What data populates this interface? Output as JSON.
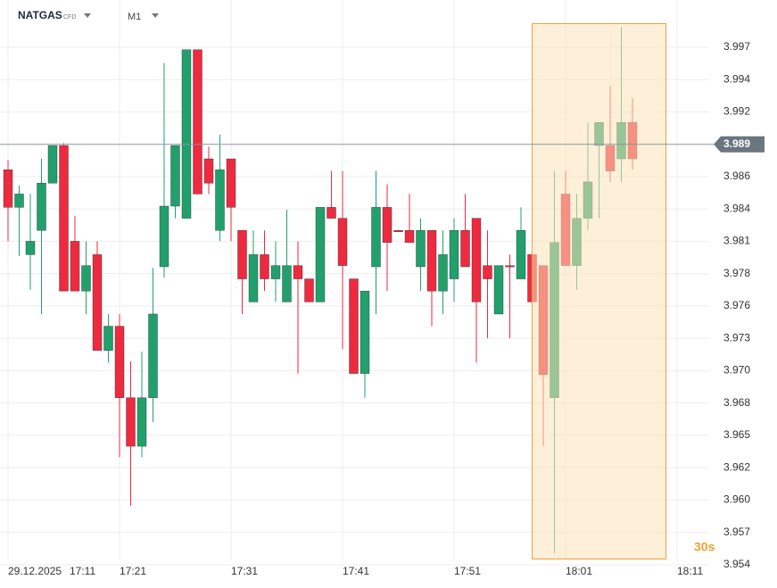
{
  "header": {
    "symbol": "NATGAS",
    "instrument_type": "CFD",
    "timeframe": "M1"
  },
  "chart_data": {
    "type": "candlestick",
    "x_date": "29.12.2025",
    "categories": [
      "17:11",
      null,
      null,
      null,
      null,
      null,
      null,
      null,
      null,
      null,
      "17:21",
      null,
      null,
      null,
      null,
      null,
      null,
      null,
      null,
      null,
      "17:31",
      null,
      null,
      null,
      null,
      null,
      null,
      null,
      null,
      null,
      "17:41",
      null,
      null,
      null,
      null,
      null,
      null,
      null,
      null,
      null,
      "17:51",
      null,
      null,
      null,
      null,
      null,
      null,
      null,
      null,
      null,
      "18:01",
      null,
      null,
      null,
      null,
      null,
      null,
      null,
      null,
      null,
      "18:11"
    ],
    "opens": [
      3.9869,
      3.9838,
      3.9799,
      3.9819,
      3.9858,
      3.9889,
      3.981,
      3.9769,
      3.9799,
      3.972,
      3.974,
      3.9681,
      3.9641,
      3.9681,
      3.9789,
      3.9839,
      3.9829,
      3.9968,
      3.9878,
      3.9819,
      3.9878,
      3.9819,
      3.976,
      3.9799,
      3.9779,
      3.976,
      3.979,
      3.9779,
      3.976,
      3.9838,
      3.9829,
      3.9779,
      3.9701,
      3.9789,
      3.9838,
      3.9819,
      3.9819,
      3.9789,
      3.9819,
      3.9769,
      3.9779,
      3.9819,
      3.9829,
      3.979,
      3.975,
      3.979,
      3.9779,
      3.9799,
      3.979,
      3.9681,
      3.9849,
      3.979,
      3.9829,
      3.9889,
      3.9889,
      3.9878,
      3.9908,
      null,
      null,
      null,
      null
    ],
    "highs": [
      3.9877,
      3.9856,
      3.9849,
      3.9878,
      3.9889,
      3.9891,
      3.9831,
      3.981,
      3.981,
      3.975,
      3.975,
      3.9711,
      3.9719,
      3.9788,
      3.9957,
      3.9889,
      3.9968,
      3.9968,
      3.9888,
      3.9898,
      3.9878,
      3.9819,
      3.9819,
      3.9819,
      3.981,
      3.9836,
      3.981,
      3.9779,
      3.9838,
      3.9868,
      3.9868,
      3.9779,
      3.9769,
      3.9868,
      3.9857,
      3.9819,
      3.9849,
      3.9829,
      3.9819,
      3.9819,
      3.9829,
      3.9849,
      3.9829,
      3.9819,
      3.979,
      3.9799,
      3.9838,
      3.9799,
      3.979,
      3.9868,
      3.9868,
      3.9849,
      3.9908,
      3.9908,
      3.9938,
      3.9987,
      3.9928,
      null,
      null,
      null,
      null
    ],
    "lows": [
      3.981,
      3.9798,
      3.977,
      3.975,
      3.9858,
      3.9769,
      3.9769,
      3.975,
      3.972,
      3.971,
      3.9632,
      3.9592,
      3.9632,
      3.9661,
      3.978,
      3.9829,
      3.9829,
      3.9849,
      3.9849,
      3.981,
      3.981,
      3.975,
      3.976,
      3.9769,
      3.976,
      3.976,
      3.9701,
      3.976,
      3.976,
      3.9829,
      3.9721,
      3.9701,
      3.9681,
      3.975,
      3.9769,
      3.9818,
      3.9809,
      3.9769,
      3.974,
      3.975,
      3.976,
      3.9789,
      3.971,
      3.973,
      3.975,
      3.973,
      3.9779,
      3.976,
      3.9641,
      3.9553,
      3.979,
      3.977,
      3.9819,
      3.9829,
      3.9859,
      3.9859,
      3.9869,
      null,
      null,
      null,
      null
    ],
    "closes": [
      3.9838,
      3.9849,
      3.981,
      3.9858,
      3.9889,
      3.9769,
      3.9769,
      3.979,
      3.972,
      3.974,
      3.9681,
      3.9641,
      3.9681,
      3.975,
      3.9839,
      3.9889,
      3.9968,
      3.9849,
      3.9858,
      3.9869,
      3.9838,
      3.9779,
      3.9799,
      3.9779,
      3.979,
      3.979,
      3.9779,
      3.976,
      3.9838,
      3.9829,
      3.979,
      3.9701,
      3.9769,
      3.9838,
      3.9809,
      3.9818,
      3.9809,
      3.9819,
      3.9769,
      3.9799,
      3.9819,
      3.9789,
      3.976,
      3.9779,
      3.979,
      3.9789,
      3.9819,
      3.976,
      3.97,
      3.9809,
      3.979,
      3.9829,
      3.9859,
      3.9908,
      3.9868,
      3.9908,
      3.9878,
      null,
      null,
      null,
      null
    ],
    "up_color": "#22a06b",
    "down_color": "#ee2a3f",
    "ylim": [
      3.9541,
      4.0009
    ],
    "yticks": [
      {
        "value": 3.997,
        "label": "3.997"
      },
      {
        "value": 3.99433,
        "label": "3.994"
      },
      {
        "value": 3.99167,
        "label": "3.992"
      },
      {
        "value": 3.98633,
        "label": "3.986"
      },
      {
        "value": 3.98367,
        "label": "3.984"
      },
      {
        "value": 3.981,
        "label": "3.981"
      },
      {
        "value": 3.97833,
        "label": "3.978"
      },
      {
        "value": 3.97567,
        "label": "3.976"
      },
      {
        "value": 3.973,
        "label": "3.973"
      },
      {
        "value": 3.97033,
        "label": "3.970"
      },
      {
        "value": 3.96767,
        "label": "3.968"
      },
      {
        "value": 3.965,
        "label": "3.965"
      },
      {
        "value": 3.96233,
        "label": "3.962"
      },
      {
        "value": 3.95967,
        "label": "3.960"
      },
      {
        "value": 3.957,
        "label": "3.957"
      },
      {
        "value": 3.95433,
        "label": "3.954"
      }
    ],
    "grid": true,
    "current_price": 3.989,
    "countdown": "30s"
  }
}
